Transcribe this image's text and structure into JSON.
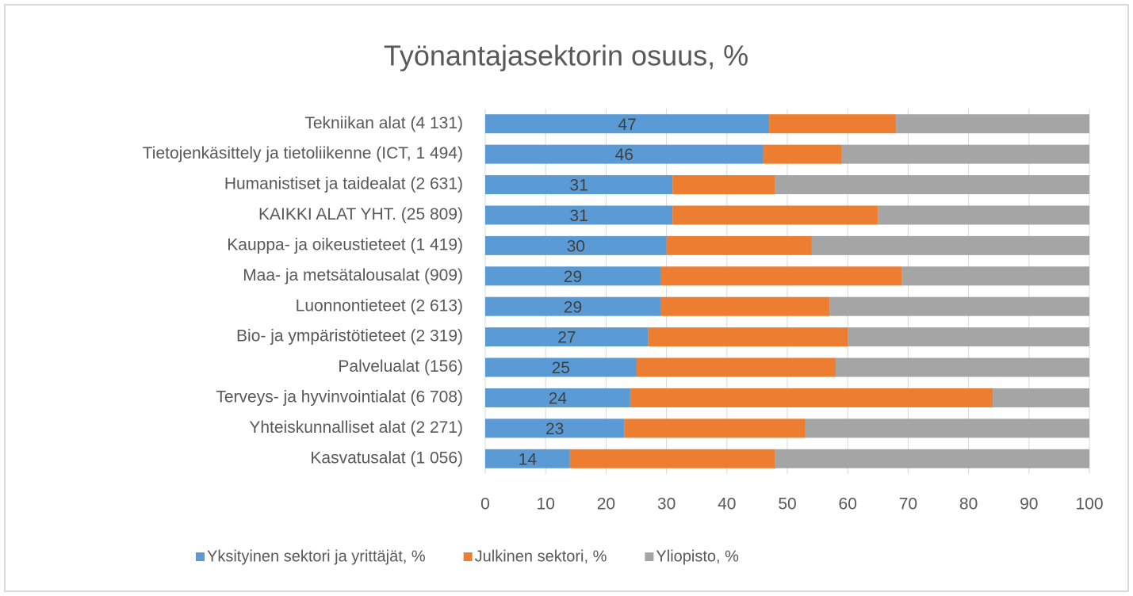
{
  "chart_data": {
    "type": "stacked_bar_horizontal",
    "title": "Työnantajasektorin osuus, %",
    "categories": [
      "Tekniikan alat (4 131)",
      "Tietojenkäsittely ja tietoliikenne (ICT, 1 494)",
      "Humanistiset ja taidealat (2 631)",
      "KAIKKI ALAT YHT. (25 809)",
      "Kauppa- ja oikeustieteet (1 419)",
      "Maa- ja metsätalousalat (909)",
      "Luonnontieteet (2 613)",
      "Bio- ja ympäristötieteet (2 319)",
      "Palvelualat (156)",
      "Terveys- ja hyvinvointialat (6 708)",
      "Yhteiskunnalliset alat (2 271)",
      "Kasvatusalat (1 056)"
    ],
    "series": [
      {
        "name": "Yksityinen sektori ja yrittäjät, %",
        "color": "#5b9bd5",
        "values": [
          47,
          46,
          31,
          31,
          30,
          29,
          29,
          27,
          25,
          24,
          23,
          14
        ],
        "data_labels": true
      },
      {
        "name": "Julkinen sektori, %",
        "color": "#ed7d31",
        "values": [
          21,
          13,
          17,
          34,
          24,
          40,
          28,
          33,
          33,
          60,
          30,
          34
        ]
      },
      {
        "name": "Yliopisto, %",
        "color": "#a5a5a5",
        "values": [
          32,
          41,
          52,
          35,
          46,
          31,
          43,
          40,
          42,
          16,
          47,
          52
        ]
      }
    ],
    "xlim": [
      0,
      100
    ],
    "xticks": [
      0,
      10,
      20,
      30,
      40,
      50,
      60,
      70,
      80,
      90,
      100
    ],
    "grid": true,
    "legend": "bottom"
  }
}
